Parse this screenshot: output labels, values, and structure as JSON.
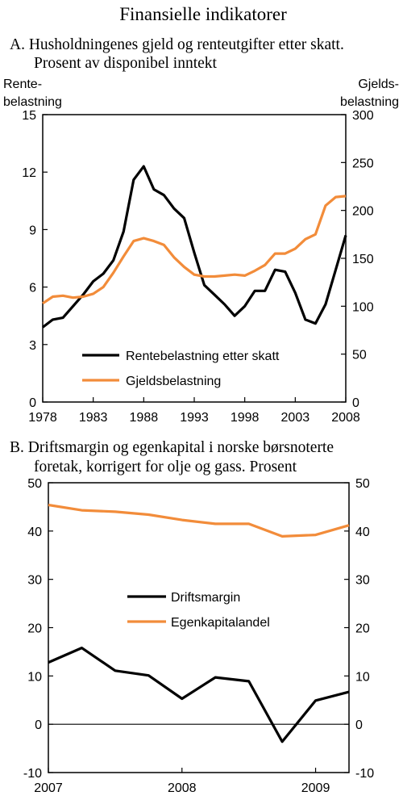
{
  "title": "Finansielle indikatorer",
  "chart_data": [
    {
      "type": "line",
      "title_line1": "A. Husholdningenes gjeld og renteutgifter etter skatt.",
      "title_line2": "Prosent av disponibel inntekt",
      "ylabel_left_line1": "Rente-",
      "ylabel_left_line2": "belastning",
      "ylabel_right_line1": "Gjelds-",
      "ylabel_right_line2": "belastning",
      "xlim": [
        1978,
        2008
      ],
      "ylim_left": [
        0,
        15
      ],
      "ylim_right": [
        0,
        300
      ],
      "x_ticks": [
        "1978",
        "1983",
        "1988",
        "1993",
        "1998",
        "2003",
        "2008"
      ],
      "y_ticks_left": [
        "0",
        "3",
        "6",
        "9",
        "12",
        "15"
      ],
      "y_ticks_right": [
        "0",
        "50",
        "100",
        "150",
        "200",
        "250",
        "300"
      ],
      "legend_position": "bottom-center",
      "series": [
        {
          "name": "Rentebelastning etter skatt",
          "axis": "left",
          "color": "#000000",
          "x": [
            1978,
            1979,
            1980,
            1981,
            1982,
            1983,
            1984,
            1985,
            1986,
            1987,
            1988,
            1989,
            1990,
            1991,
            1992,
            1993,
            1994,
            1995,
            1996,
            1997,
            1998,
            1999,
            2000,
            2001,
            2002,
            2003,
            2004,
            2005,
            2006,
            2007,
            2008
          ],
          "y": [
            3.9,
            4.3,
            4.4,
            5.0,
            5.6,
            6.3,
            6.7,
            7.4,
            8.9,
            11.6,
            12.3,
            11.1,
            10.8,
            10.1,
            9.6,
            7.8,
            6.1,
            5.6,
            5.1,
            4.5,
            5.0,
            5.8,
            5.8,
            6.9,
            6.8,
            5.7,
            4.3,
            4.1,
            5.1,
            6.9,
            8.7
          ]
        },
        {
          "name": "Gjeldsbelastning",
          "axis": "right",
          "color": "#f28c3a",
          "x": [
            1978,
            1979,
            1980,
            1981,
            1982,
            1983,
            1984,
            1985,
            1986,
            1987,
            1988,
            1989,
            1990,
            1991,
            1992,
            1993,
            1994,
            1995,
            1996,
            1997,
            1998,
            1999,
            2000,
            2001,
            2002,
            2003,
            2004,
            2005,
            2006,
            2007,
            2008
          ],
          "y": [
            103,
            110,
            111,
            109,
            110,
            113,
            120,
            135,
            152,
            168,
            171,
            168,
            164,
            151,
            141,
            133,
            131,
            131,
            132,
            133,
            132,
            137,
            143,
            155,
            155,
            160,
            170,
            175,
            205,
            214,
            215
          ]
        }
      ]
    },
    {
      "type": "line",
      "title_line1": "B. Driftsmargin og egenkapital i norske børsnoterte",
      "title_line2": "foretak, korrigert for olje og gass. Prosent",
      "xlim": [
        2007,
        2009.25
      ],
      "ylim": [
        -10,
        50
      ],
      "x_ticks": [
        "2007",
        "2008",
        "2009"
      ],
      "y_ticks": [
        "-10",
        "0",
        "10",
        "20",
        "30",
        "40",
        "50"
      ],
      "legend_position": "center",
      "series": [
        {
          "name": "Driftsmargin",
          "color": "#000000",
          "x": [
            2007,
            2007.25,
            2007.5,
            2007.75,
            2008,
            2008.25,
            2008.5,
            2008.75,
            2009,
            2009.25
          ],
          "y": [
            12.8,
            15.8,
            11.1,
            10.1,
            5.3,
            9.7,
            8.9,
            -3.6,
            4.9,
            6.7
          ]
        },
        {
          "name": "Egenkapitalandel",
          "color": "#f28c3a",
          "x": [
            2007,
            2007.25,
            2007.5,
            2007.75,
            2008,
            2008.25,
            2008.5,
            2008.75,
            2009,
            2009.25
          ],
          "y": [
            45.4,
            44.3,
            44.0,
            43.4,
            42.3,
            41.5,
            41.5,
            38.9,
            39.2,
            41.2
          ]
        }
      ]
    }
  ]
}
